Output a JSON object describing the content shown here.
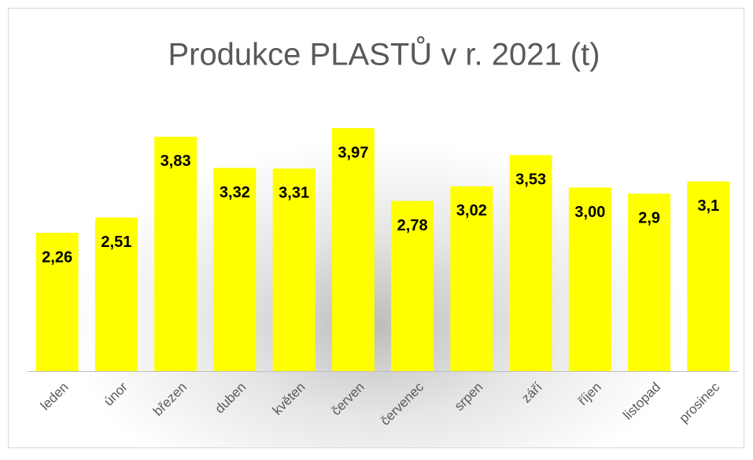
{
  "chart_data": {
    "type": "bar",
    "title": "Produkce PLASTŮ v r. 2021 (t)",
    "categories": [
      "leden",
      "únor",
      "březen",
      "duben",
      "květen",
      "červen",
      "červenec",
      "srpen",
      "září",
      "říjen",
      "listopad",
      "prosinec"
    ],
    "values": [
      2.26,
      2.51,
      3.83,
      3.32,
      3.31,
      3.97,
      2.78,
      3.02,
      3.53,
      3.0,
      2.9,
      3.1
    ],
    "value_labels": [
      "2,26",
      "2,51",
      "3,83",
      "3,32",
      "3,31",
      "3,97",
      "2,78",
      "3,02",
      "3,53",
      "3,00",
      "2,9",
      "3,1"
    ],
    "color": "#ffff00"
  }
}
